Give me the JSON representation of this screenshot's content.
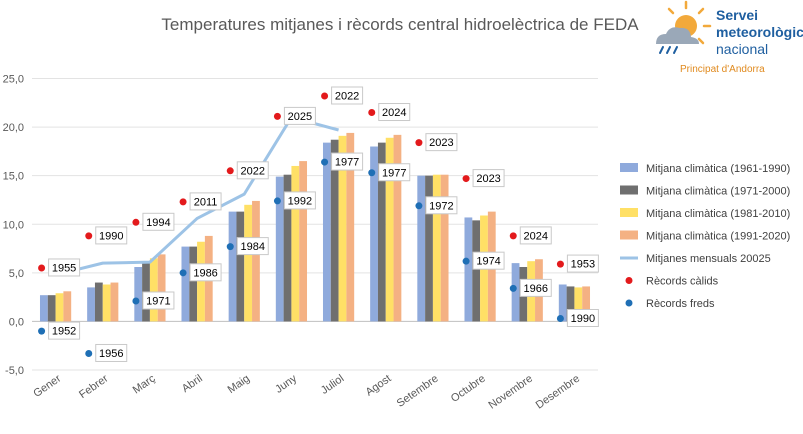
{
  "logo": {
    "line1": "Servei",
    "line2": "meteorològic",
    "line3": "nacional",
    "subtitle": "Principat d'Andorra",
    "color_blue": "#1f5fa0",
    "color_orange": "#f2a93b"
  },
  "chart_data": {
    "type": "bar",
    "title": "Temperatures mitjanes i rècords central hidroelèctrica de FEDA",
    "xlabel": "",
    "ylabel": "",
    "ylim": [
      -5,
      25
    ],
    "yticks": [
      -5,
      0,
      5,
      10,
      15,
      20,
      25
    ],
    "ytick_labels": [
      "-5,0",
      "0,0",
      "5,0",
      "10,0",
      "15,0",
      "20,0",
      "25,0"
    ],
    "grid": true,
    "legend_position": "right",
    "categories": [
      "Gener",
      "Febrer",
      "Març",
      "Abril",
      "Maig",
      "Juny",
      "Juliol",
      "Agost",
      "Setembre",
      "Octubre",
      "Novembre",
      "Desembre"
    ],
    "series": [
      {
        "name": "Mitjana climàtica (1961-1990)",
        "type": "bar",
        "color": "#8faadc",
        "values": [
          2.7,
          3.5,
          5.6,
          7.7,
          11.3,
          14.9,
          18.4,
          18.0,
          15.0,
          10.7,
          6.0,
          3.8
        ]
      },
      {
        "name": "Mitjana climàtica (1971-2000)",
        "type": "bar",
        "color": "#6f6f6f",
        "values": [
          2.7,
          4.0,
          6.0,
          7.7,
          11.3,
          15.1,
          18.7,
          18.4,
          15.0,
          10.4,
          5.6,
          3.6
        ]
      },
      {
        "name": "Mitjana climàtica (1981-2010)",
        "type": "bar",
        "color": "#ffe066",
        "values": [
          2.9,
          3.8,
          6.5,
          8.2,
          12.0,
          16.0,
          19.1,
          18.9,
          15.1,
          10.9,
          6.2,
          3.5
        ]
      },
      {
        "name": "Mitjana climàtica (1991-2020)",
        "type": "bar",
        "color": "#f4b183",
        "values": [
          3.1,
          4.0,
          6.9,
          8.8,
          12.4,
          16.5,
          19.4,
          19.2,
          15.1,
          11.3,
          6.4,
          3.6
        ]
      },
      {
        "name": "Mitjanes mensuals 20025",
        "type": "line",
        "color": "#9dc3e6",
        "values": [
          4.8,
          6.0,
          6.1,
          10.6,
          13.1,
          21.0,
          19.7,
          null,
          null,
          null,
          null,
          null
        ]
      },
      {
        "name": "Rècords càlids",
        "type": "scatter",
        "color": "#e31a1c",
        "values": [
          5.5,
          8.8,
          10.2,
          12.3,
          15.5,
          21.1,
          23.2,
          21.5,
          18.4,
          14.7,
          8.8,
          5.9
        ],
        "labels": [
          "1955",
          "1990",
          "1994",
          "2011",
          "2022",
          "2025",
          "2022",
          "2024",
          "2023",
          "2023",
          "2024",
          "1953"
        ]
      },
      {
        "name": "Rècords freds",
        "type": "scatter",
        "color": "#1f6fb5",
        "values": [
          -1.0,
          -3.3,
          2.1,
          5.0,
          7.7,
          12.4,
          16.4,
          15.3,
          11.9,
          6.2,
          3.4,
          0.3
        ],
        "labels": [
          "1952",
          "1956",
          "1971",
          "1986",
          "1984",
          "1992",
          "1977",
          "1977",
          "1972",
          "1974",
          "1966",
          "1990"
        ]
      }
    ]
  }
}
